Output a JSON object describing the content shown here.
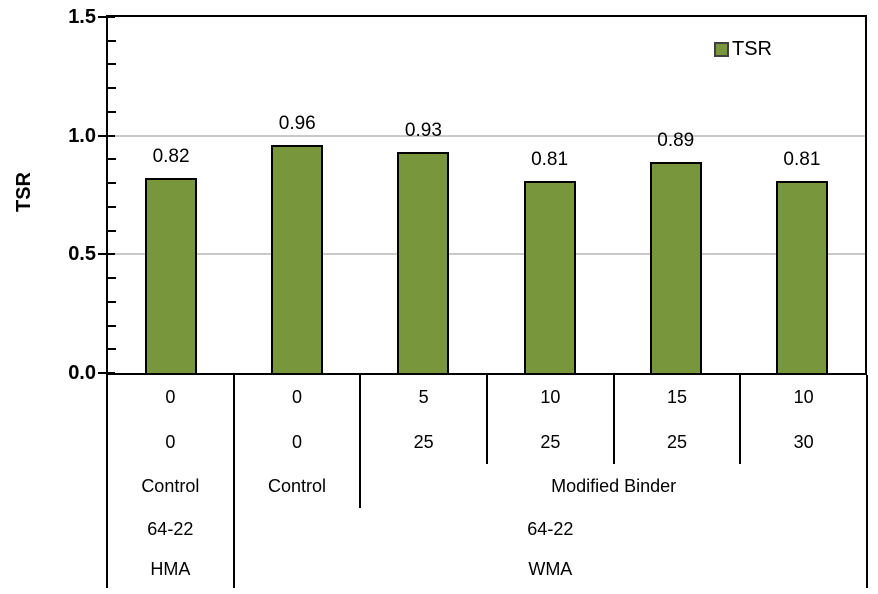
{
  "chart_data": {
    "type": "bar",
    "title": "",
    "ylabel": "TSR",
    "ylim": [
      0.0,
      1.5
    ],
    "y_major_ticks": [
      0.0,
      0.5,
      1.0,
      1.5
    ],
    "y_tick_labels": [
      "0.0",
      "0.5",
      "1.0",
      "1.5"
    ],
    "y_minor_tick_step": 0.1,
    "gridlines": [
      0.5,
      1.0
    ],
    "grid_on": true,
    "legend": {
      "label": "TSR",
      "position": "top-right"
    },
    "categories_note": "x axis is a 5-level category table, top row nearest axis",
    "series": [
      {
        "name": "TSR",
        "values": [
          0.82,
          0.96,
          0.93,
          0.81,
          0.89,
          0.81
        ],
        "value_labels": [
          "0.82",
          "0.96",
          "0.93",
          "0.81",
          "0.89",
          "0.81"
        ],
        "color": "#78963C",
        "border_color": "#000000"
      }
    ],
    "x_axis_levels": [
      {
        "name": "level-1",
        "cells": [
          {
            "label": "0",
            "span": 1
          },
          {
            "label": "0",
            "span": 1
          },
          {
            "label": "5",
            "span": 1
          },
          {
            "label": "10",
            "span": 1
          },
          {
            "label": "15",
            "span": 1
          },
          {
            "label": "10",
            "span": 1
          }
        ]
      },
      {
        "name": "level-2",
        "cells": [
          {
            "label": "0",
            "span": 1
          },
          {
            "label": "0",
            "span": 1
          },
          {
            "label": "25",
            "span": 1
          },
          {
            "label": "25",
            "span": 1
          },
          {
            "label": "25",
            "span": 1
          },
          {
            "label": "30",
            "span": 1
          }
        ]
      },
      {
        "name": "level-3",
        "cells": [
          {
            "label": "Control",
            "span": 1
          },
          {
            "label": "Control",
            "span": 1
          },
          {
            "label": "Modified Binder",
            "span": 4
          }
        ]
      },
      {
        "name": "level-4",
        "cells": [
          {
            "label": "64-22",
            "span": 1
          },
          {
            "label": "64-22",
            "span": 5
          }
        ]
      },
      {
        "name": "level-5",
        "cells": [
          {
            "label": "HMA",
            "span": 1
          },
          {
            "label": "WMA",
            "span": 5
          }
        ]
      }
    ],
    "colors": {
      "bar_fill": "#78963C",
      "bar_border": "#000000",
      "axis": "#000000",
      "gridline": "#C9C9C9",
      "text": "#000000",
      "background": "#FFFFFF"
    }
  }
}
